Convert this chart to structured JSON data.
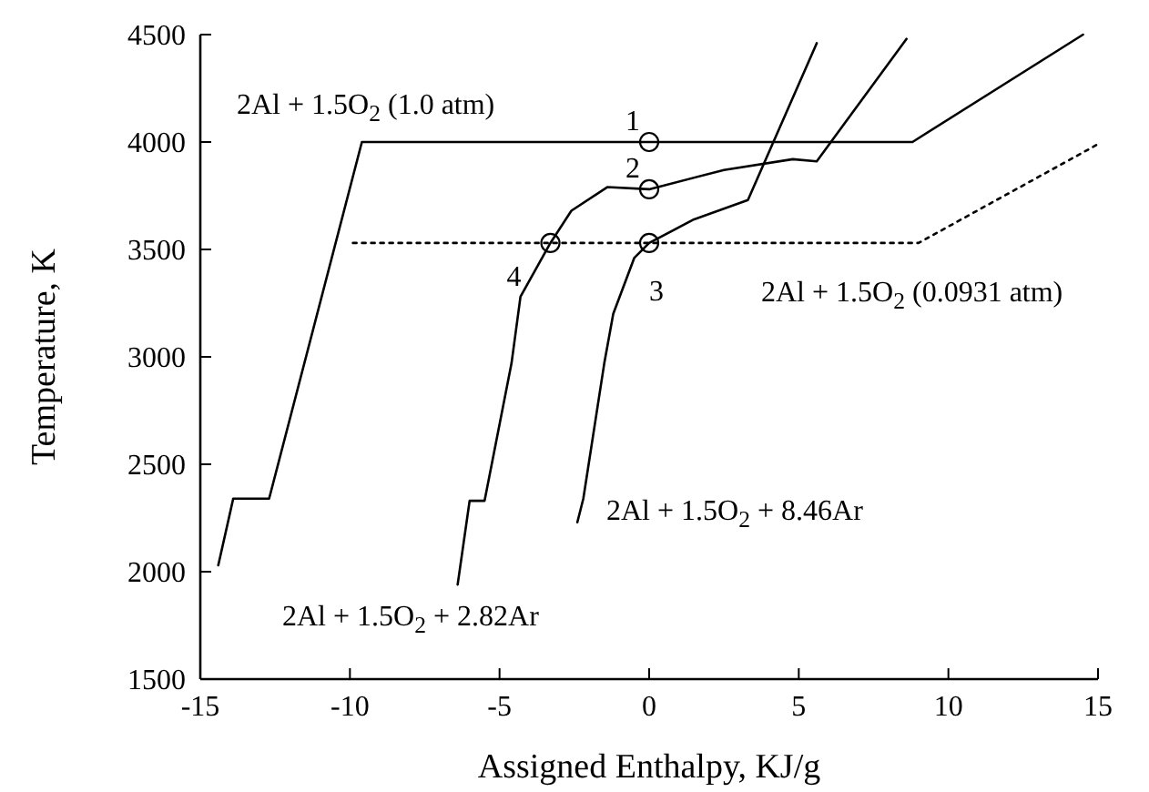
{
  "chart_data": {
    "type": "line",
    "xlabel": "Assigned Enthalpy, KJ/g",
    "ylabel": "Temperature, K",
    "xlim": [
      -15,
      15
    ],
    "ylim": [
      1500,
      4500
    ],
    "xticks": [
      -15,
      -10,
      -5,
      0,
      5,
      10,
      15
    ],
    "yticks": [
      1500,
      2000,
      2500,
      3000,
      3500,
      4000,
      4500
    ],
    "grid": false,
    "marker": "none",
    "series": [
      {
        "name": "2Al + 1.5O$_{2}$ (1.0 atm)",
        "color": "#000000",
        "line_style": "solid",
        "x": [
          -14.4,
          -13.9,
          -12.7,
          -9.6,
          8.8,
          14.5
        ],
        "values": [
          2030,
          2340,
          2340,
          4000,
          4000,
          4500
        ]
      },
      {
        "name": "2Al + 1.5O$_{2}$ (0.0931 atm)",
        "color": "#000000",
        "line_style": "dotted",
        "x": [
          -9.9,
          9.0,
          15.0
        ],
        "values": [
          3530,
          3530,
          3990
        ]
      },
      {
        "name": "2Al + 1.5O$_{2}$ + 2.82Ar",
        "color": "#000000",
        "line_style": "solid",
        "x": [
          -6.4,
          -6.0,
          -5.5,
          -4.6,
          -4.3,
          -3.3,
          -2.6,
          -1.4,
          0,
          2.5,
          4.8,
          5.6,
          8.6
        ],
        "values": [
          1940,
          2330,
          2330,
          2970,
          3280,
          3530,
          3680,
          3790,
          3780,
          3870,
          3920,
          3910,
          4480
        ]
      },
      {
        "name": "2Al + 1.5O$_{2}$ + 8.46Ar",
        "color": "#000000",
        "line_style": "solid",
        "x": [
          -2.4,
          -2.2,
          -1.5,
          -1.2,
          -0.5,
          0,
          1.5,
          3.3,
          5.6
        ],
        "values": [
          2230,
          2340,
          2970,
          3200,
          3460,
          3530,
          3640,
          3730,
          4460
        ]
      },
      {
        "type": "scatter",
        "marker": "circle",
        "color": "#000000",
        "x": [
          0,
          0,
          0,
          -3.3
        ],
        "values": [
          4000,
          3780,
          3530,
          3530
        ]
      }
    ],
    "annotations": [
      "1",
      "2",
      "3",
      "4"
    ]
  }
}
